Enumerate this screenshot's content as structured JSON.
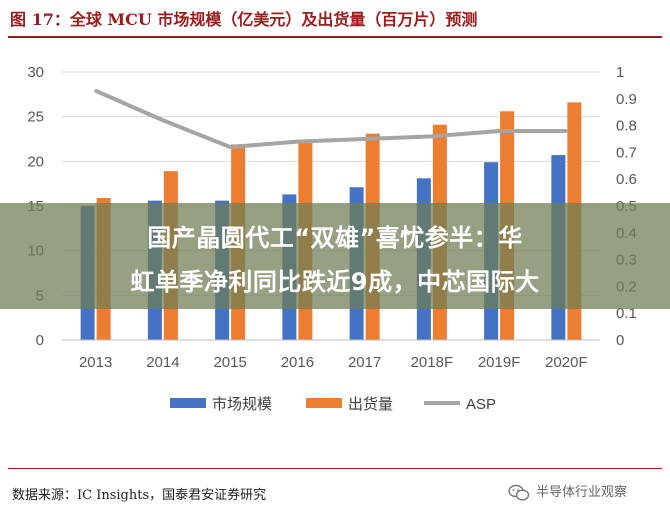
{
  "figure": {
    "title": "图 17：全球 MCU 市场规模（亿美元）及出货量（百万片）预测",
    "source": "数据来源：IC Insights，国泰君安证券研究"
  },
  "banner": {
    "line1": "国产晶圆代工“双雄”喜忧参半：华",
    "line2": "虹单季净利同比跌近9成，中芯国际大"
  },
  "watermark": {
    "text": "半导体行业观察",
    "icon": "wechat-icon"
  },
  "colors": {
    "market_size": "#4472c4",
    "shipments": "#ed7d31",
    "asp": "#a5a5a5",
    "title": "#9b1c1c"
  },
  "chart_data": {
    "type": "bar",
    "categories": [
      "2013",
      "2014",
      "2015",
      "2016",
      "2017",
      "2018F",
      "2019F",
      "2020F"
    ],
    "series": [
      {
        "name": "市场规模",
        "type": "bar",
        "axis": "left",
        "values": [
          15.0,
          15.6,
          15.6,
          16.3,
          17.1,
          18.1,
          19.9,
          20.7
        ]
      },
      {
        "name": "出货量",
        "type": "bar",
        "axis": "left",
        "values": [
          15.9,
          18.9,
          21.9,
          22.1,
          23.1,
          24.1,
          25.6,
          26.6
        ]
      },
      {
        "name": "ASP",
        "type": "line",
        "axis": "right",
        "values": [
          0.93,
          0.82,
          0.72,
          0.74,
          0.75,
          0.76,
          0.78,
          0.78
        ]
      }
    ],
    "ylim": [
      0,
      30
    ],
    "yticks": [
      "0",
      "5",
      "10",
      "15",
      "20",
      "25",
      "30"
    ],
    "y2lim": [
      0,
      1
    ],
    "y2ticks": [
      "0",
      "0.1",
      "0.2",
      "0.3",
      "0.4",
      "0.5",
      "0.6",
      "0.7",
      "0.8",
      "0.9",
      "1"
    ],
    "grid": "horizontal",
    "legend_position": "bottom"
  }
}
